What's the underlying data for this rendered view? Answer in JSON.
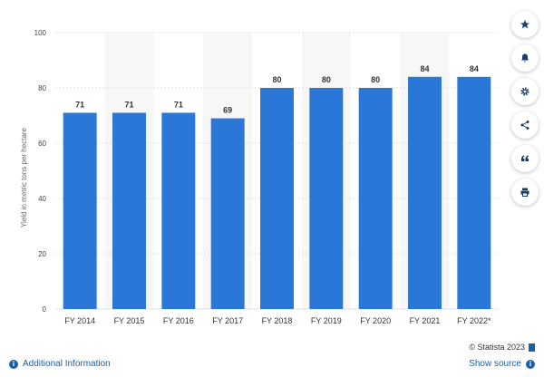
{
  "chart_data": {
    "type": "bar",
    "categories": [
      "FY 2014",
      "FY 2015",
      "FY 2016",
      "FY 2017",
      "FY 2018",
      "FY 2019",
      "FY 2020",
      "FY 2021",
      "FY 2022*"
    ],
    "values": [
      71,
      71,
      71,
      69,
      80,
      80,
      80,
      84,
      84
    ],
    "data_labels": [
      "71",
      "71",
      "71",
      "69",
      "80",
      "80",
      "80",
      "84",
      "84"
    ],
    "ylabel": "Yield in metric tons per hectare",
    "ylim": [
      0,
      100
    ],
    "yticks": [
      "0",
      "20",
      "40",
      "60",
      "80",
      "100"
    ],
    "ytick_values": [
      0,
      20,
      40,
      60,
      80,
      100
    ],
    "bar_color": "#2a77d8",
    "grid": true
  },
  "toolbar": {
    "icons": [
      "star-icon",
      "bell-icon",
      "gear-icon",
      "share-icon",
      "quote-icon",
      "print-icon"
    ]
  },
  "credit": {
    "text": "© Statista 2023"
  },
  "footer": {
    "additional_info": "Additional Information",
    "show_source": "Show source",
    "info_glyph": "i",
    "source_glyph": "i"
  }
}
